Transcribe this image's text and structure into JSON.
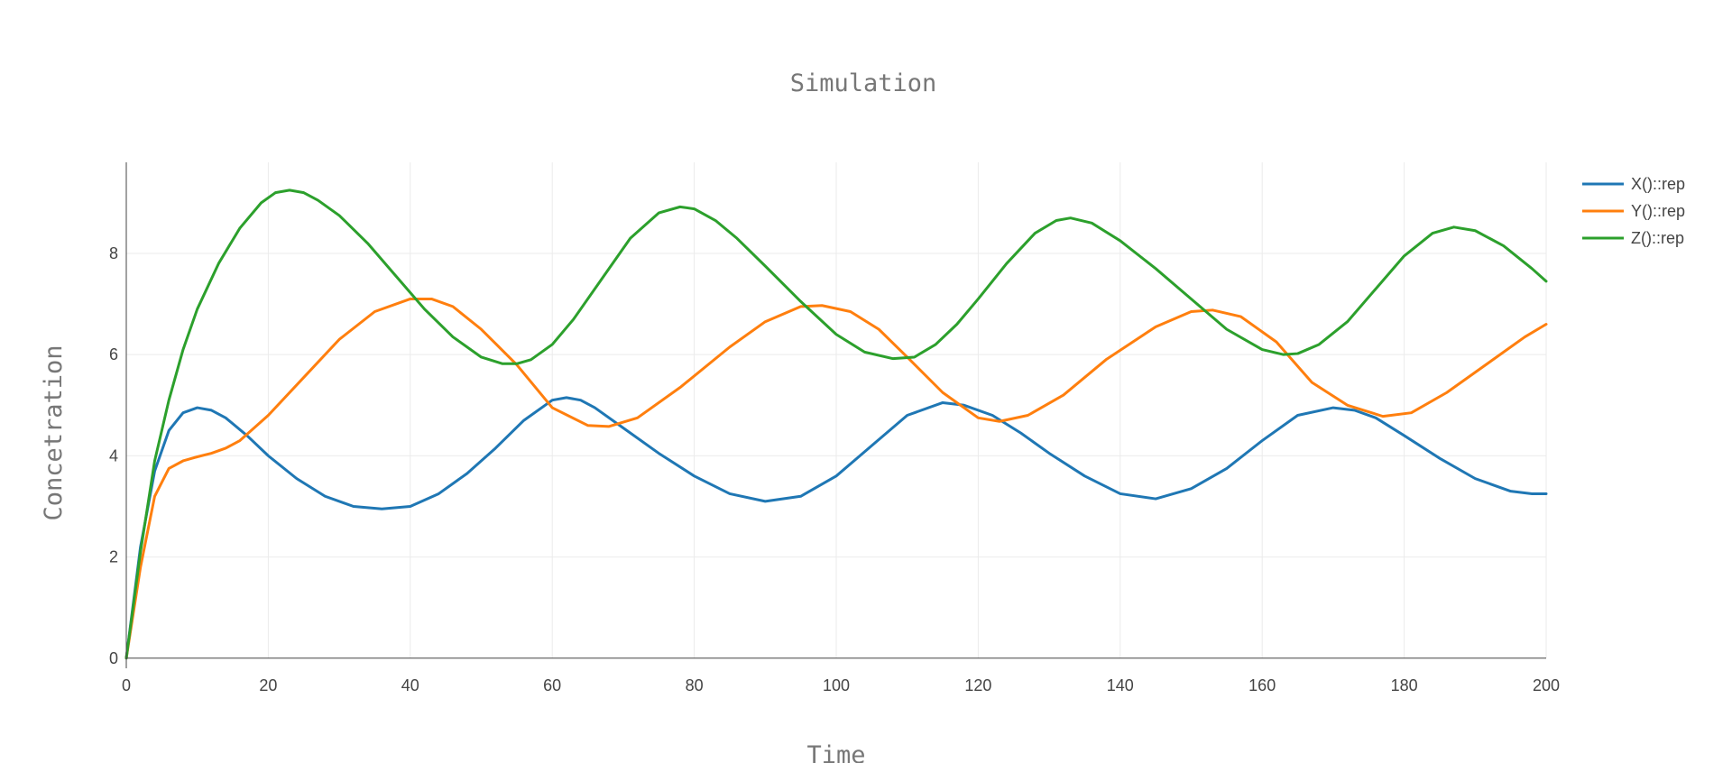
{
  "chart_data": {
    "type": "line",
    "title": "Simulation",
    "xlabel": "Time",
    "ylabel": "Concetration",
    "xlim": [
      0,
      200
    ],
    "ylim": [
      -0.2,
      9.8
    ],
    "x_ticks": [
      0,
      20,
      40,
      60,
      80,
      100,
      120,
      140,
      160,
      180,
      200
    ],
    "y_ticks": [
      0,
      2,
      4,
      6,
      8
    ],
    "grid": true,
    "legend_position": "top-right",
    "series": [
      {
        "name": "X()::rep",
        "color": "#1f77b4",
        "x": [
          0,
          2,
          4,
          6,
          8,
          10,
          12,
          14,
          17,
          20,
          24,
          28,
          32,
          36,
          40,
          44,
          48,
          52,
          56,
          60,
          62,
          64,
          66,
          70,
          75,
          80,
          85,
          90,
          95,
          100,
          105,
          110,
          115,
          118,
          122,
          126,
          130,
          135,
          140,
          145,
          150,
          155,
          160,
          165,
          170,
          173,
          176,
          180,
          185,
          190,
          195,
          198,
          200
        ],
        "y": [
          0,
          2.2,
          3.7,
          4.5,
          4.85,
          4.95,
          4.9,
          4.75,
          4.4,
          4.0,
          3.55,
          3.2,
          3.0,
          2.95,
          3.0,
          3.25,
          3.65,
          4.15,
          4.7,
          5.1,
          5.15,
          5.1,
          4.95,
          4.55,
          4.05,
          3.6,
          3.25,
          3.1,
          3.2,
          3.6,
          4.2,
          4.8,
          5.05,
          5.0,
          4.8,
          4.45,
          4.05,
          3.6,
          3.25,
          3.15,
          3.35,
          3.75,
          4.3,
          4.8,
          4.95,
          4.9,
          4.75,
          4.4,
          3.95,
          3.55,
          3.3,
          3.25,
          3.25
        ]
      },
      {
        "name": "Y()::rep",
        "color": "#ff7f0e",
        "x": [
          0,
          2,
          4,
          6,
          8,
          10,
          12,
          14,
          16,
          20,
          25,
          30,
          35,
          40,
          43,
          46,
          50,
          55,
          60,
          65,
          68,
          72,
          78,
          85,
          90,
          95,
          98,
          102,
          106,
          110,
          115,
          120,
          123,
          127,
          132,
          138,
          145,
          150,
          153,
          157,
          162,
          167,
          172,
          177,
          181,
          186,
          192,
          197,
          200
        ],
        "y": [
          0,
          1.8,
          3.2,
          3.75,
          3.9,
          3.98,
          4.05,
          4.15,
          4.3,
          4.8,
          5.55,
          6.3,
          6.85,
          7.1,
          7.1,
          6.95,
          6.5,
          5.8,
          4.95,
          4.6,
          4.58,
          4.75,
          5.35,
          6.15,
          6.65,
          6.95,
          6.97,
          6.85,
          6.5,
          5.95,
          5.25,
          4.75,
          4.68,
          4.8,
          5.2,
          5.9,
          6.55,
          6.85,
          6.88,
          6.75,
          6.25,
          5.45,
          5.0,
          4.78,
          4.85,
          5.25,
          5.85,
          6.35,
          6.6
        ]
      },
      {
        "name": "Z()::rep",
        "color": "#2ca02c",
        "x": [
          0,
          2,
          4,
          6,
          8,
          10,
          13,
          16,
          19,
          21,
          23,
          25,
          27,
          30,
          34,
          38,
          42,
          46,
          50,
          53,
          55,
          57,
          60,
          63,
          67,
          71,
          75,
          78,
          80,
          83,
          86,
          90,
          95,
          100,
          104,
          108,
          111,
          114,
          117,
          120,
          124,
          128,
          131,
          133,
          136,
          140,
          145,
          150,
          155,
          160,
          163,
          165,
          168,
          172,
          176,
          180,
          184,
          187,
          190,
          194,
          198,
          200
        ],
        "y": [
          0,
          2.1,
          3.9,
          5.1,
          6.1,
          6.9,
          7.8,
          8.5,
          9.0,
          9.2,
          9.25,
          9.2,
          9.05,
          8.75,
          8.2,
          7.55,
          6.9,
          6.35,
          5.95,
          5.82,
          5.82,
          5.9,
          6.2,
          6.7,
          7.5,
          8.3,
          8.8,
          8.92,
          8.88,
          8.65,
          8.3,
          7.75,
          7.05,
          6.4,
          6.05,
          5.92,
          5.95,
          6.2,
          6.6,
          7.1,
          7.8,
          8.4,
          8.65,
          8.7,
          8.6,
          8.25,
          7.7,
          7.1,
          6.5,
          6.1,
          6.0,
          6.02,
          6.2,
          6.65,
          7.3,
          7.95,
          8.4,
          8.52,
          8.45,
          8.15,
          7.7,
          7.45
        ]
      }
    ]
  }
}
